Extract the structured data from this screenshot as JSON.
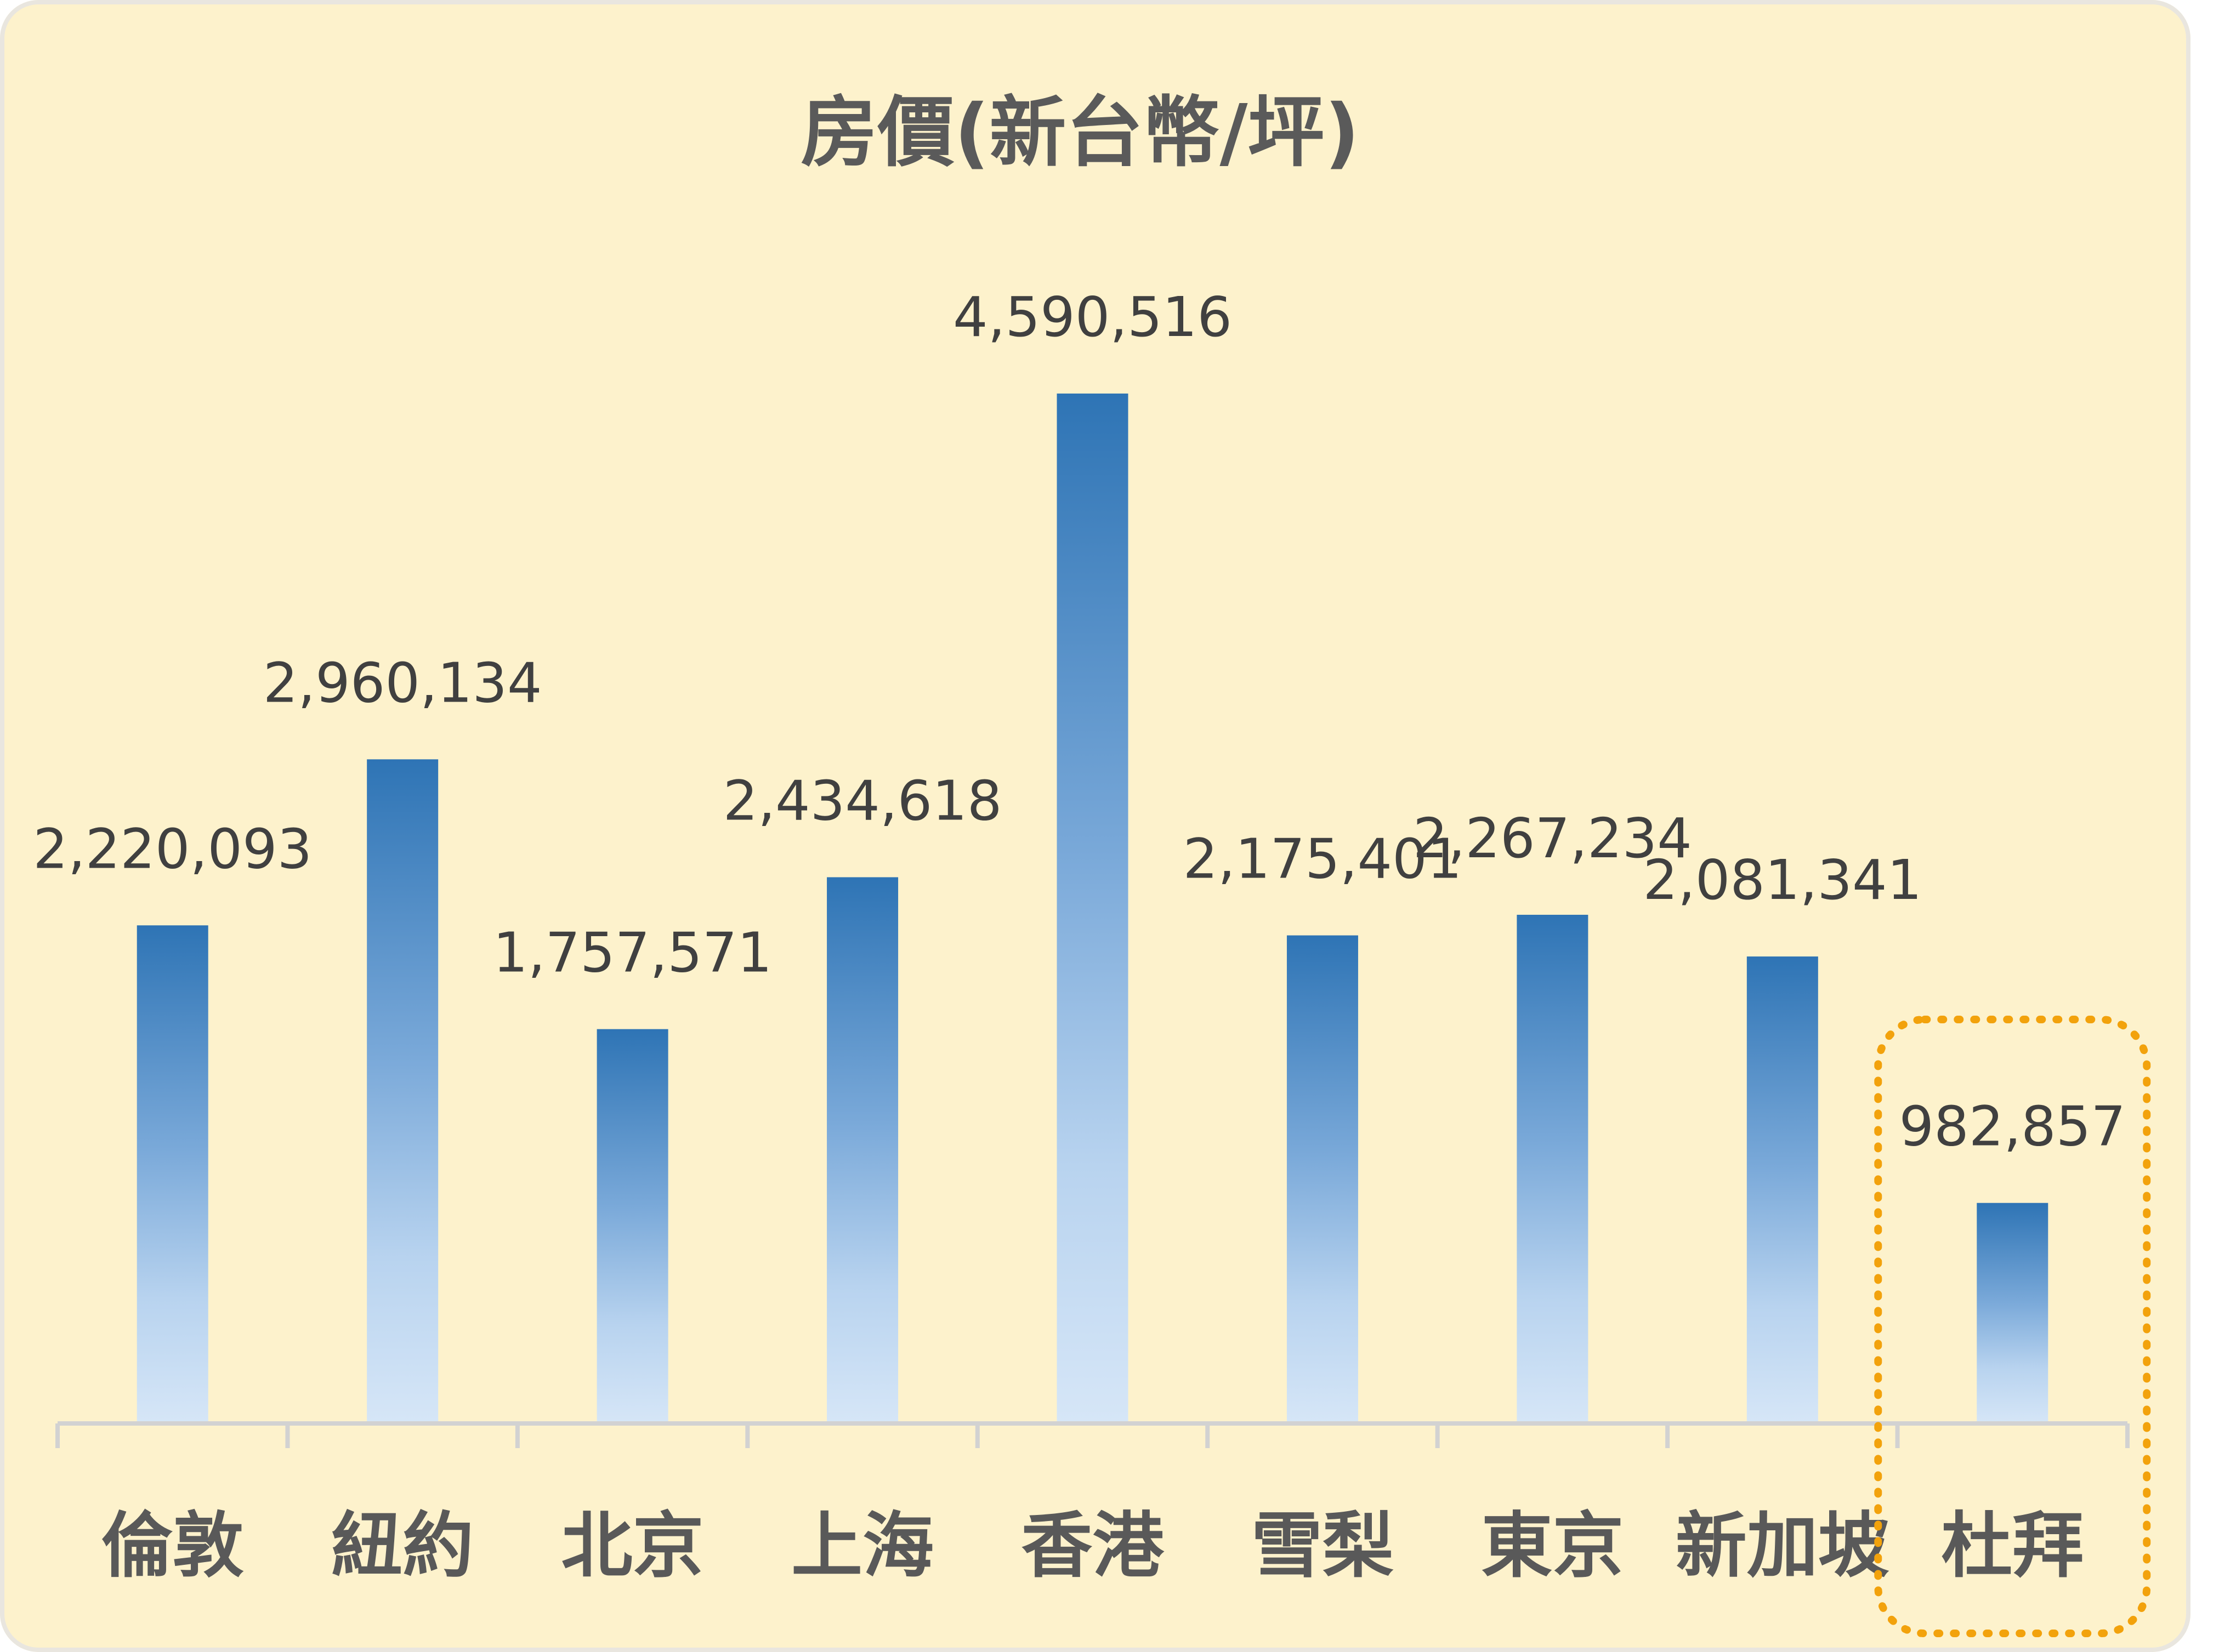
{
  "chart_data": {
    "type": "bar",
    "title": "房價(新台幣/坪)",
    "xlabel": "",
    "ylabel": "",
    "categories": [
      "倫敦",
      "紐約",
      "北京",
      "上海",
      "香港",
      "雪梨",
      "東京",
      "新加坡",
      "杜拜"
    ],
    "values": [
      2220093,
      2960134,
      1757571,
      2434618,
      4590516,
      2175401,
      2267234,
      2081341,
      982857
    ],
    "value_labels": [
      "2,220,093",
      "2,960,134",
      "1,757,571",
      "2,434,618",
      "4,590,516",
      "2,175,401",
      "2,267,234",
      "2,081,341",
      "982,857"
    ],
    "ylim": [
      0,
      4590516
    ],
    "grid": false,
    "legend": "none",
    "highlight": {
      "category": "杜拜",
      "style": "dotted-rounded-box",
      "color": "#f2a20c"
    },
    "colors": {
      "background": "#fdf2cc",
      "bar_top": "#2e74b5",
      "bar_bottom": "#d6e6f7",
      "axis": "#d2d2d2",
      "title_text": "#5a5a5a",
      "label_text": "#404040",
      "category_text": "#595959"
    }
  }
}
